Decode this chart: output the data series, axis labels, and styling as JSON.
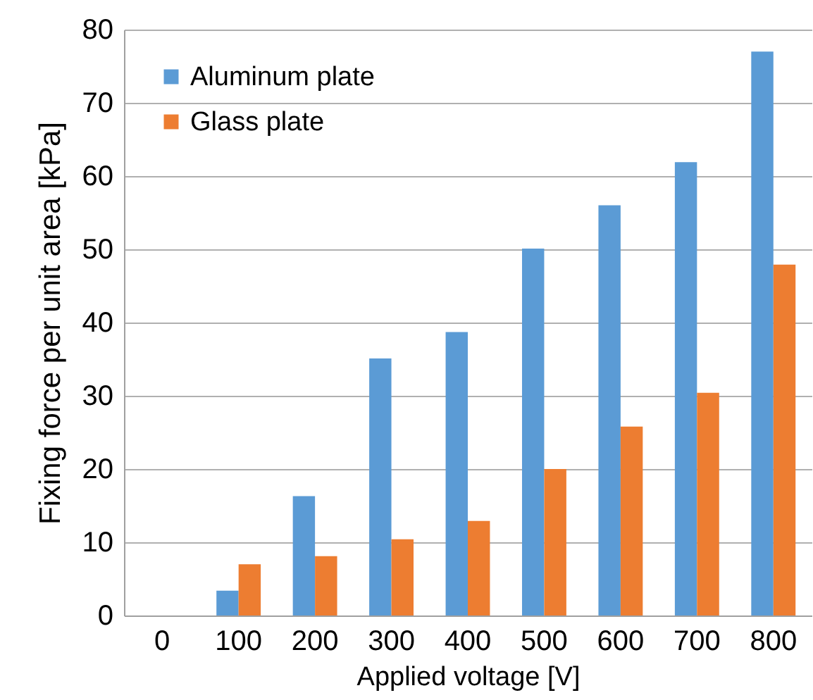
{
  "chart_data": {
    "type": "bar",
    "xlabel": "Applied voltage [V]",
    "ylabel": "Fixing force per unit area [kPa]",
    "categories": [
      "0",
      "100",
      "200",
      "300",
      "400",
      "500",
      "600",
      "700",
      "800"
    ],
    "series": [
      {
        "name": "Aluminum plate",
        "color": "#5b9bd5",
        "values": [
          0,
          3.4,
          16.3,
          35.1,
          38.7,
          50.1,
          56.0,
          61.9,
          77.0
        ]
      },
      {
        "name": "Glass plate",
        "color": "#ed7d31",
        "values": [
          0,
          7.0,
          8.1,
          10.4,
          12.9,
          20.0,
          25.8,
          30.4,
          47.9
        ]
      }
    ],
    "ylim": [
      0,
      80
    ],
    "yticks": [
      0,
      10,
      20,
      30,
      40,
      50,
      60,
      70,
      80
    ],
    "grid": "y",
    "legend": "top left"
  }
}
